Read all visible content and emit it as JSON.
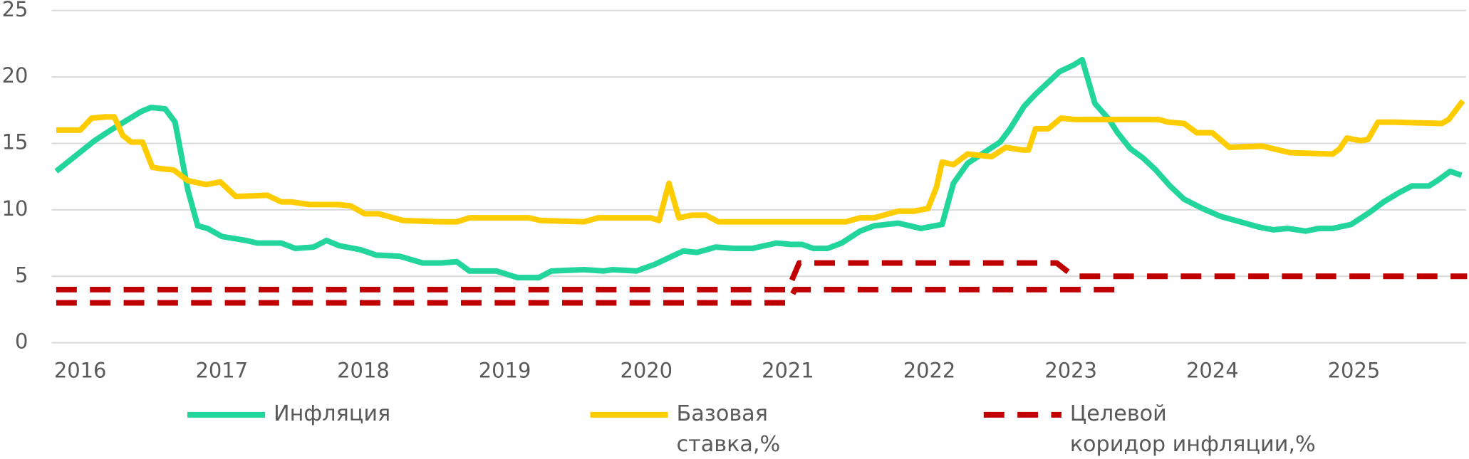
{
  "chart_data": {
    "type": "line",
    "xlim": [
      2015.83,
      2025.8
    ],
    "xticks": [
      2016,
      2017,
      2018,
      2019,
      2020,
      2021,
      2022,
      2023,
      2024,
      2025
    ],
    "ylim": [
      0,
      25
    ],
    "yticks": [
      0,
      5,
      10,
      15,
      20,
      25
    ],
    "grid": true,
    "series": [
      {
        "name": "Инфляция",
        "color": "#21d59b",
        "style": "solid",
        "x": [
          2015.83,
          2016.1,
          2016.23,
          2016.43,
          2016.5,
          2016.6,
          2016.67,
          2016.76,
          2016.83,
          2016.9,
          2017.0,
          2017.17,
          2017.25,
          2017.42,
          2017.52,
          2017.65,
          2017.74,
          2017.83,
          2017.98,
          2018.09,
          2018.26,
          2018.42,
          2018.55,
          2018.66,
          2018.75,
          2018.94,
          2019.0,
          2019.09,
          2019.24,
          2019.33,
          2019.56,
          2019.7,
          2019.76,
          2019.93,
          2020.06,
          2020.26,
          2020.36,
          2020.49,
          2020.62,
          2020.75,
          2020.92,
          2021.02,
          2021.1,
          2021.18,
          2021.28,
          2021.38,
          2021.51,
          2021.61,
          2021.78,
          2021.94,
          2022.09,
          2022.17,
          2022.27,
          2022.4,
          2022.5,
          2022.57,
          2022.67,
          2022.75,
          2022.83,
          2022.92,
          2023.02,
          2023.08,
          2023.17,
          2023.27,
          2023.33,
          2023.42,
          2023.51,
          2023.6,
          2023.7,
          2023.8,
          2023.93,
          2024.06,
          2024.23,
          2024.33,
          2024.43,
          2024.53,
          2024.66,
          2024.75,
          2024.85,
          2024.98,
          2025.11,
          2025.21,
          2025.32,
          2025.41,
          2025.53,
          2025.59,
          2025.68,
          2025.76
        ],
        "values": [
          12.9,
          15.2,
          16.1,
          17.4,
          17.7,
          17.6,
          16.6,
          11.5,
          8.8,
          8.6,
          8.0,
          7.7,
          7.5,
          7.5,
          7.1,
          7.2,
          7.7,
          7.3,
          7.0,
          6.6,
          6.5,
          6.0,
          6.0,
          6.1,
          5.4,
          5.4,
          5.2,
          4.9,
          4.9,
          5.4,
          5.5,
          5.4,
          5.5,
          5.4,
          5.9,
          6.9,
          6.8,
          7.2,
          7.1,
          7.1,
          7.5,
          7.4,
          7.4,
          7.1,
          7.1,
          7.5,
          8.4,
          8.8,
          9.0,
          8.6,
          8.9,
          12.0,
          13.5,
          14.4,
          15.1,
          16.1,
          17.8,
          18.7,
          19.5,
          20.4,
          20.9,
          21.3,
          18.0,
          16.8,
          15.8,
          14.6,
          13.9,
          13.0,
          11.8,
          10.8,
          10.1,
          9.5,
          9.0,
          8.7,
          8.5,
          8.6,
          8.4,
          8.6,
          8.6,
          8.9,
          9.8,
          10.6,
          11.3,
          11.8,
          11.8,
          12.2,
          12.9,
          12.6
        ]
      },
      {
        "name": "Базовая\nставка,%",
        "color": "#ffcc00",
        "style": "solid",
        "x": [
          2015.83,
          2016.0,
          2016.08,
          2016.18,
          2016.24,
          2016.3,
          2016.36,
          2016.44,
          2016.51,
          2016.57,
          2016.66,
          2016.76,
          2016.89,
          2016.99,
          2017.1,
          2017.32,
          2017.42,
          2017.49,
          2017.62,
          2017.82,
          2017.91,
          2018.01,
          2018.11,
          2018.28,
          2018.54,
          2018.66,
          2018.75,
          2019.17,
          2019.25,
          2019.56,
          2019.66,
          2020.03,
          2020.09,
          2020.16,
          2020.23,
          2020.32,
          2020.42,
          2020.51,
          2021.05,
          2021.41,
          2021.51,
          2021.61,
          2021.78,
          2021.89,
          2021.99,
          2022.05,
          2022.09,
          2022.17,
          2022.27,
          2022.44,
          2022.54,
          2022.66,
          2022.7,
          2022.75,
          2022.84,
          2022.93,
          2023.03,
          2023.62,
          2023.69,
          2023.8,
          2023.89,
          2024.0,
          2024.12,
          2024.35,
          2024.55,
          2024.85,
          2024.9,
          2024.95,
          2025.05,
          2025.1,
          2025.17,
          2025.28,
          2025.62,
          2025.67,
          2025.77
        ],
        "values": [
          16.0,
          16.0,
          16.9,
          17.0,
          17.0,
          15.6,
          15.1,
          15.1,
          13.2,
          13.1,
          13.0,
          12.2,
          11.9,
          12.1,
          11.0,
          11.1,
          10.6,
          10.6,
          10.4,
          10.4,
          10.3,
          9.7,
          9.7,
          9.2,
          9.1,
          9.1,
          9.4,
          9.4,
          9.2,
          9.1,
          9.4,
          9.4,
          9.2,
          12.0,
          9.4,
          9.6,
          9.6,
          9.1,
          9.1,
          9.1,
          9.4,
          9.4,
          9.9,
          9.9,
          10.1,
          11.7,
          13.6,
          13.4,
          14.2,
          14.0,
          14.7,
          14.5,
          14.5,
          16.1,
          16.1,
          16.9,
          16.8,
          16.8,
          16.6,
          16.5,
          15.8,
          15.8,
          14.7,
          14.8,
          14.3,
          14.2,
          14.6,
          15.4,
          15.2,
          15.3,
          16.6,
          16.6,
          16.5,
          16.8,
          18.2
        ]
      },
      {
        "name": "Целевой\nкоридор инфляции,%",
        "color": "#c00000",
        "style": "dashed",
        "x": [
          2015.83,
          2021.0,
          2021.08,
          2022.9,
          2023.02,
          2025.8
        ],
        "values": [
          4,
          4,
          6,
          6,
          5,
          5
        ]
      },
      {
        "color": "#c00000",
        "style": "dashed",
        "x": [
          2015.83,
          2021.0,
          2021.05,
          2023.33
        ],
        "values": [
          3,
          3,
          4,
          4
        ]
      }
    ]
  }
}
